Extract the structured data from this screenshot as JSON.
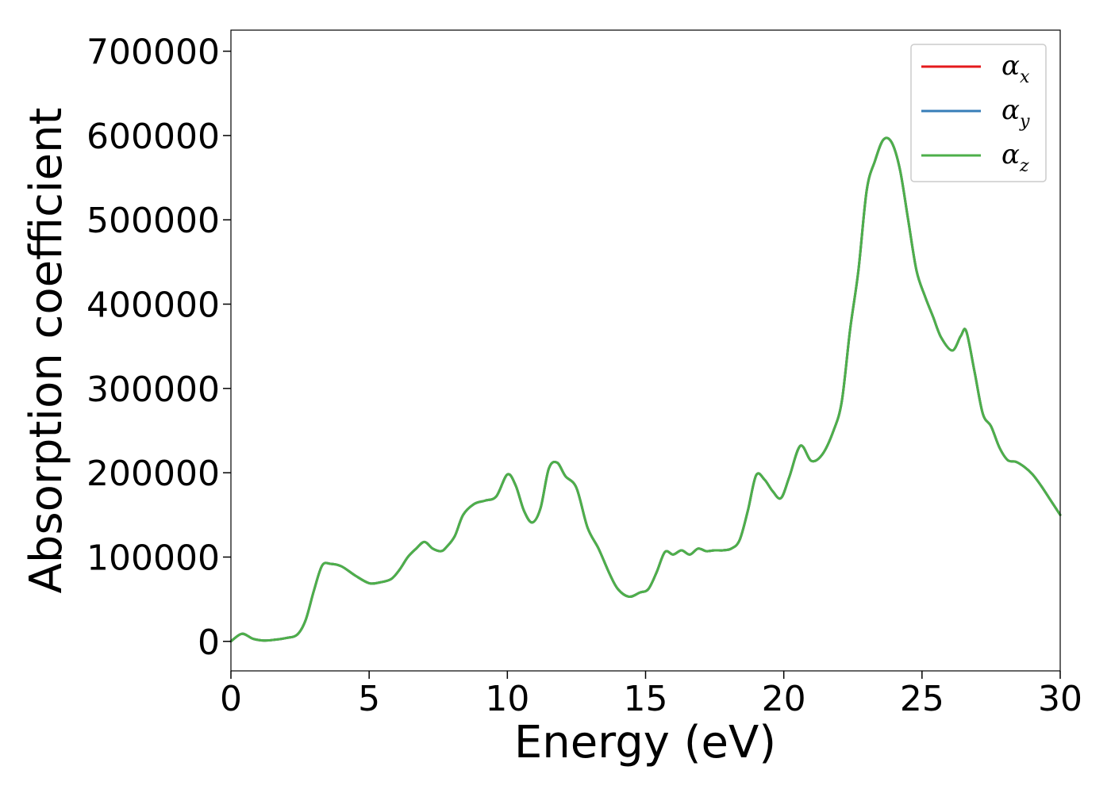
{
  "chart_data": {
    "type": "line",
    "title": "",
    "xlabel": "Energy (eV)",
    "ylabel": "Absorption coefficient",
    "xlim": [
      0,
      30
    ],
    "ylim": [
      -35000,
      725000
    ],
    "xticks": [
      0,
      5,
      10,
      15,
      20,
      25,
      30
    ],
    "yticks": [
      0,
      100000,
      200000,
      300000,
      400000,
      500000,
      600000,
      700000
    ],
    "grid": false,
    "legend_position": "top-right",
    "series": [
      {
        "name": "α",
        "subscript": "x",
        "color": "#e41a1c",
        "x": [
          0,
          0.4,
          0.8,
          1.2,
          1.6,
          2.0,
          2.4,
          2.7,
          3.0,
          3.3,
          3.6,
          4.0,
          4.5,
          5.0,
          5.4,
          5.8,
          6.1,
          6.4,
          6.7,
          7.0,
          7.3,
          7.6,
          7.8,
          8.1,
          8.4,
          8.8,
          9.2,
          9.6,
          10.0,
          10.3,
          10.6,
          10.9,
          11.2,
          11.5,
          11.8,
          12.1,
          12.5,
          12.9,
          13.3,
          13.7,
          14.0,
          14.4,
          14.8,
          15.1,
          15.4,
          15.7,
          16.0,
          16.3,
          16.6,
          16.9,
          17.2,
          17.5,
          17.8,
          18.1,
          18.4,
          18.7,
          19.0,
          19.3,
          19.6,
          19.9,
          20.2,
          20.6,
          21.0,
          21.4,
          21.8,
          22.1,
          22.4,
          22.7,
          23.0,
          23.3,
          23.6,
          23.9,
          24.2,
          24.5,
          24.8,
          25.1,
          25.4,
          25.7,
          26.1,
          26.4,
          26.6,
          26.9,
          27.2,
          27.5,
          27.8,
          28.1,
          28.4,
          28.7,
          29.0,
          29.3,
          29.6,
          30.0
        ],
        "y": [
          0,
          9000,
          3000,
          1000,
          2000,
          4000,
          8000,
          25000,
          60000,
          90000,
          92000,
          89000,
          78000,
          69000,
          70000,
          74000,
          85000,
          100000,
          110000,
          118000,
          110000,
          107000,
          112000,
          125000,
          150000,
          163000,
          167000,
          172000,
          198000,
          185000,
          155000,
          141000,
          158000,
          205000,
          212000,
          196000,
          182000,
          135000,
          110000,
          80000,
          62000,
          53000,
          58000,
          62000,
          82000,
          106000,
          103000,
          108000,
          103000,
          110000,
          107000,
          108000,
          108000,
          110000,
          120000,
          155000,
          197000,
          192000,
          178000,
          170000,
          195000,
          232000,
          214000,
          222000,
          250000,
          285000,
          370000,
          440000,
          535000,
          570000,
          595000,
          592000,
          560000,
          500000,
          440000,
          410000,
          385000,
          360000,
          345000,
          362000,
          368000,
          320000,
          270000,
          255000,
          230000,
          215000,
          213000,
          207000,
          198000,
          185000,
          170000,
          150000
        ]
      },
      {
        "name": "α",
        "subscript": "y",
        "color": "#377eb8",
        "x": [
          0,
          0.4,
          0.8,
          1.2,
          1.6,
          2.0,
          2.4,
          2.7,
          3.0,
          3.3,
          3.6,
          4.0,
          4.5,
          5.0,
          5.4,
          5.8,
          6.1,
          6.4,
          6.7,
          7.0,
          7.3,
          7.6,
          7.8,
          8.1,
          8.4,
          8.8,
          9.2,
          9.6,
          10.0,
          10.3,
          10.6,
          10.9,
          11.2,
          11.5,
          11.8,
          12.1,
          12.5,
          12.9,
          13.3,
          13.7,
          14.0,
          14.4,
          14.8,
          15.1,
          15.4,
          15.7,
          16.0,
          16.3,
          16.6,
          16.9,
          17.2,
          17.5,
          17.8,
          18.1,
          18.4,
          18.7,
          19.0,
          19.3,
          19.6,
          19.9,
          20.2,
          20.6,
          21.0,
          21.4,
          21.8,
          22.1,
          22.4,
          22.7,
          23.0,
          23.3,
          23.6,
          23.9,
          24.2,
          24.5,
          24.8,
          25.1,
          25.4,
          25.7,
          26.1,
          26.4,
          26.6,
          26.9,
          27.2,
          27.5,
          27.8,
          28.1,
          28.4,
          28.7,
          29.0,
          29.3,
          29.6,
          30.0
        ],
        "y": [
          0,
          9000,
          3000,
          1000,
          2000,
          4000,
          8000,
          25000,
          60000,
          90000,
          92000,
          89000,
          78000,
          69000,
          70000,
          74000,
          85000,
          100000,
          110000,
          118000,
          110000,
          107000,
          112000,
          125000,
          150000,
          163000,
          167000,
          172000,
          198000,
          185000,
          155000,
          141000,
          158000,
          205000,
          212000,
          196000,
          182000,
          135000,
          110000,
          80000,
          62000,
          53000,
          58000,
          62000,
          82000,
          106000,
          103000,
          108000,
          103000,
          110000,
          107000,
          108000,
          108000,
          110000,
          120000,
          155000,
          197000,
          192000,
          178000,
          170000,
          195000,
          232000,
          214000,
          222000,
          250000,
          285000,
          370000,
          440000,
          535000,
          570000,
          595000,
          592000,
          560000,
          500000,
          440000,
          410000,
          385000,
          360000,
          345000,
          362000,
          368000,
          320000,
          270000,
          255000,
          230000,
          215000,
          213000,
          207000,
          198000,
          185000,
          170000,
          150000
        ]
      },
      {
        "name": "α",
        "subscript": "z",
        "color": "#4daf4a",
        "x": [
          0,
          0.4,
          0.8,
          1.2,
          1.6,
          2.0,
          2.4,
          2.7,
          3.0,
          3.3,
          3.6,
          4.0,
          4.5,
          5.0,
          5.4,
          5.8,
          6.1,
          6.4,
          6.7,
          7.0,
          7.3,
          7.6,
          7.8,
          8.1,
          8.4,
          8.8,
          9.2,
          9.6,
          10.0,
          10.3,
          10.6,
          10.9,
          11.2,
          11.5,
          11.8,
          12.1,
          12.5,
          12.9,
          13.3,
          13.7,
          14.0,
          14.4,
          14.8,
          15.1,
          15.4,
          15.7,
          16.0,
          16.3,
          16.6,
          16.9,
          17.2,
          17.5,
          17.8,
          18.1,
          18.4,
          18.7,
          19.0,
          19.3,
          19.6,
          19.9,
          20.2,
          20.6,
          21.0,
          21.4,
          21.8,
          22.1,
          22.4,
          22.7,
          23.0,
          23.3,
          23.6,
          23.9,
          24.2,
          24.5,
          24.8,
          25.1,
          25.4,
          25.7,
          26.1,
          26.4,
          26.6,
          26.9,
          27.2,
          27.5,
          27.8,
          28.1,
          28.4,
          28.7,
          29.0,
          29.3,
          29.6,
          30.0
        ],
        "y": [
          0,
          9000,
          3000,
          1000,
          2000,
          4000,
          8000,
          25000,
          60000,
          90000,
          92000,
          89000,
          78000,
          69000,
          70000,
          74000,
          85000,
          100000,
          110000,
          118000,
          110000,
          107000,
          112000,
          125000,
          150000,
          163000,
          167000,
          172000,
          198000,
          185000,
          155000,
          141000,
          158000,
          205000,
          212000,
          196000,
          182000,
          135000,
          110000,
          80000,
          62000,
          53000,
          58000,
          62000,
          82000,
          106000,
          103000,
          108000,
          103000,
          110000,
          107000,
          108000,
          108000,
          110000,
          120000,
          155000,
          197000,
          192000,
          178000,
          170000,
          195000,
          232000,
          214000,
          222000,
          250000,
          285000,
          370000,
          440000,
          535000,
          570000,
          595000,
          592000,
          560000,
          500000,
          440000,
          410000,
          385000,
          360000,
          345000,
          362000,
          368000,
          320000,
          270000,
          255000,
          230000,
          215000,
          213000,
          207000,
          198000,
          185000,
          170000,
          150000
        ]
      }
    ]
  }
}
